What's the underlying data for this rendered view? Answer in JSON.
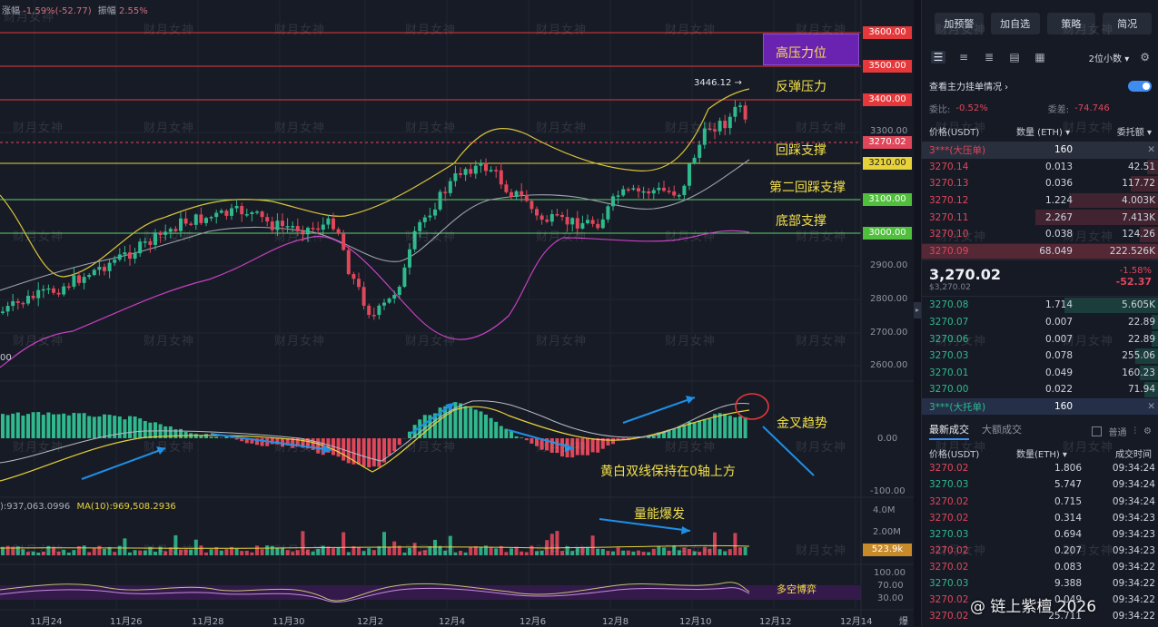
{
  "header": {
    "change_label": "涨幅",
    "change_value": "-1.59%(-52.77)",
    "amp_label": "振幅",
    "amp_value": "2.55%"
  },
  "price_axis": [
    "3300.00",
    "2900.00",
    "2800.00",
    "2700.00",
    "2600.00"
  ],
  "price_tags": {
    "r3600": "3600.00",
    "r3500": "3500.00",
    "r3400": "3400.00",
    "current": "3270.02",
    "y3210": "3210.00",
    "g3100": "3100.00",
    "g3000": "3000.00"
  },
  "peak_label": "3446.12",
  "left_edge_label": "00",
  "annotations": {
    "high_pressure": "高压力位",
    "rebound_pressure": "反弹压力",
    "pullback_support": "回踩支撑",
    "second_support": "第二回踩支撑",
    "bottom_support": "底部支撑",
    "golden_cross": "金叉趋势",
    "macd_note": "黄白双线保持在0轴上方",
    "volume_note": "量能爆发",
    "bull_bear": "多空博弈"
  },
  "macd_axis": [
    "0.00",
    "-100.00"
  ],
  "volume_info": {
    "left": "):937,063.0996",
    "ma": "MA(10):969,508.2936"
  },
  "volume_axis": [
    "4.0M",
    "2.00M"
  ],
  "volume_tag": "523.9k",
  "rsi_axis": [
    "100.00",
    "70.00",
    "30.00"
  ],
  "x_axis": [
    "11月24",
    "11月26",
    "11月28",
    "11月30",
    "12月2",
    "12月4",
    "12月6",
    "12月8",
    "12月10",
    "12月12",
    "12月14"
  ],
  "x_axis_right": "爆",
  "watermark": "财月女神",
  "footer_watermark": "@ 链上紫檀 2026",
  "colors": {
    "up": "#2fb98d",
    "down": "#e0475a",
    "red_line": "#e5383b",
    "yellow_line": "#e8d23a",
    "green_line": "#5fd16b",
    "purple": "#6a22b0"
  },
  "side": {
    "buttons": [
      "加预警",
      "加自选",
      "策略",
      "简况"
    ],
    "precision": "2位小数",
    "main_orders": "查看主力挂单情况",
    "ratio_label": "委比:",
    "ratio_value": "-0.52%",
    "diff_label": "委差:",
    "diff_value": "-74.746",
    "col_price": "价格(USDT)",
    "col_qty": "数量 (ETH)",
    "col_total": "委托额",
    "big_sell": {
      "label": "3***(大压单)",
      "qty": "160"
    },
    "asks": [
      {
        "price": "3270.14",
        "qty": "0.013",
        "total": "42.51"
      },
      {
        "price": "3270.13",
        "qty": "0.036",
        "total": "117.72"
      },
      {
        "price": "3270.12",
        "qty": "1.224",
        "total": "4.003K"
      },
      {
        "price": "3270.11",
        "qty": "2.267",
        "total": "7.413K"
      },
      {
        "price": "3270.10",
        "qty": "0.038",
        "total": "124.26"
      },
      {
        "price": "3270.09",
        "qty": "68.049",
        "total": "222.526K"
      }
    ],
    "last_price": "3,270.02",
    "last_usd": "$3,270.02",
    "last_change_pct": "-1.58%",
    "last_change": "-52.37",
    "bids": [
      {
        "price": "3270.08",
        "qty": "1.714",
        "total": "5.605K"
      },
      {
        "price": "3270.07",
        "qty": "0.007",
        "total": "22.89"
      },
      {
        "price": "3270.06",
        "qty": "0.007",
        "total": "22.89"
      },
      {
        "price": "3270.03",
        "qty": "0.078",
        "total": "255.06"
      },
      {
        "price": "3270.01",
        "qty": "0.049",
        "total": "160.23"
      },
      {
        "price": "3270.00",
        "qty": "0.022",
        "total": "71.94"
      }
    ],
    "big_buy": {
      "label": "3***(大托单)",
      "qty": "160"
    },
    "tab_latest": "最新成交",
    "tab_large": "大额成交",
    "normal": "普通",
    "trade_cols": {
      "price": "价格(USDT)",
      "qty": "数量(ETH)",
      "time": "成交时间"
    },
    "trades": [
      {
        "price": "3270.02",
        "qty": "1.806",
        "time": "09:34:24",
        "side": "down"
      },
      {
        "price": "3270.03",
        "qty": "5.747",
        "time": "09:34:24",
        "side": "up"
      },
      {
        "price": "3270.02",
        "qty": "0.715",
        "time": "09:34:24",
        "side": "down"
      },
      {
        "price": "3270.02",
        "qty": "0.314",
        "time": "09:34:23",
        "side": "down"
      },
      {
        "price": "3270.03",
        "qty": "0.694",
        "time": "09:34:23",
        "side": "up"
      },
      {
        "price": "3270.02",
        "qty": "0.207",
        "time": "09:34:23",
        "side": "down"
      },
      {
        "price": "3270.02",
        "qty": "0.083",
        "time": "09:34:22",
        "side": "down"
      },
      {
        "price": "3270.03",
        "qty": "9.388",
        "time": "09:34:22",
        "side": "up"
      },
      {
        "price": "3270.02",
        "qty": "0.049",
        "time": "09:34:22",
        "side": "down"
      },
      {
        "price": "3270.02",
        "qty": "25.711",
        "time": "09:34:22",
        "side": "down"
      }
    ]
  }
}
